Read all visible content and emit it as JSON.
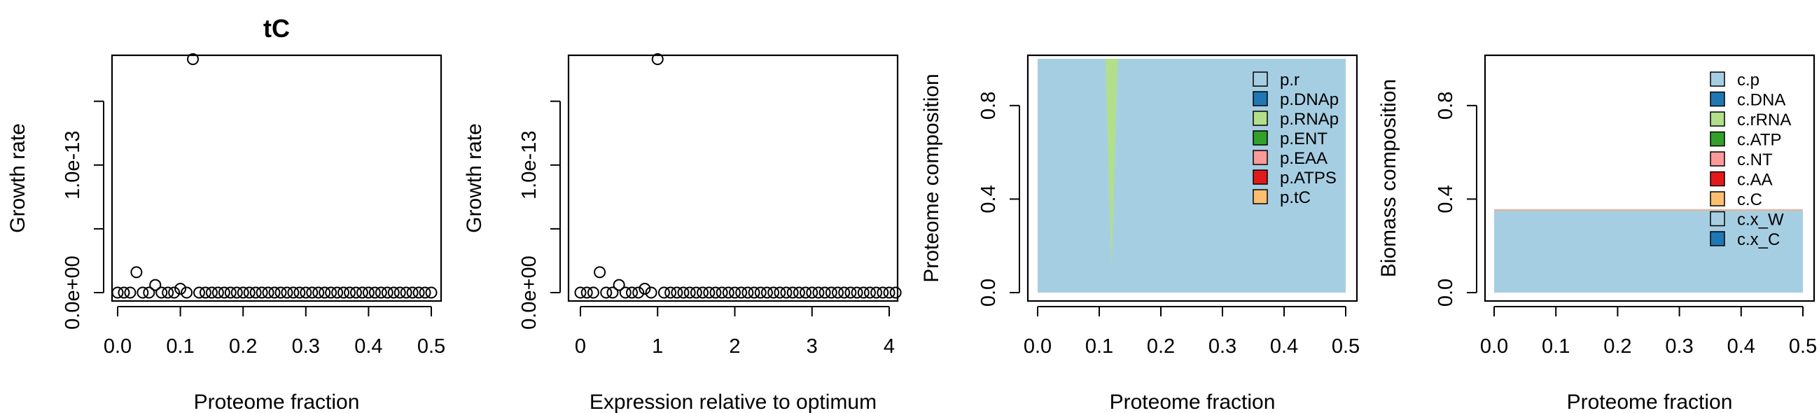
{
  "colors": {
    "axis": "#000000",
    "p.r": "#a6cee3",
    "p.DNAp": "#1f78b4",
    "p.RNAp": "#b2df8a",
    "p.ENT": "#33a02c",
    "p.EAA": "#fb9a99",
    "p.ATPS": "#e31a1c",
    "p.tC": "#fdbf6f",
    "c.p": "#a6cee3",
    "c.DNA": "#1f78b4",
    "c.rRNA": "#b2df8a",
    "c.ATP": "#33a02c",
    "c.NT": "#fb9a99",
    "c.AA": "#e31a1c",
    "c.C": "#fdbf6f",
    "c.x_W": "#a6cee3",
    "c.x_C": "#1f78b4"
  },
  "chart_data": [
    {
      "type": "scatter",
      "title": "tC",
      "xlabel": "Proteome fraction",
      "ylabel": "Growth rate",
      "xlim": [
        0,
        0.5
      ],
      "ylim": [
        0,
        1.9e-13
      ],
      "xticks": [
        "0.0",
        "0.1",
        "0.2",
        "0.3",
        "0.4",
        "0.5"
      ],
      "yticks": [
        "0.0e+00",
        "1.0e-13"
      ],
      "grid": false,
      "points": {
        "x": [
          0.0,
          0.01,
          0.02,
          0.03,
          0.04,
          0.05,
          0.06,
          0.07,
          0.08,
          0.09,
          0.1,
          0.11,
          0.12,
          0.13,
          0.14,
          0.15,
          0.16,
          0.17,
          0.18,
          0.19,
          0.2,
          0.21,
          0.22,
          0.23,
          0.24,
          0.25,
          0.26,
          0.27,
          0.28,
          0.29,
          0.3,
          0.31,
          0.32,
          0.33,
          0.34,
          0.35,
          0.36,
          0.37,
          0.38,
          0.39,
          0.4,
          0.41,
          0.42,
          0.43,
          0.44,
          0.45,
          0.46,
          0.47,
          0.48,
          0.49,
          0.5
        ],
        "y": [
          0,
          0,
          0,
          1.6e-14,
          0,
          0,
          6e-15,
          0,
          0,
          0,
          3e-15,
          0,
          1.83e-13,
          0,
          0,
          0,
          0,
          0,
          0,
          0,
          0,
          0,
          0,
          0,
          0,
          0,
          0,
          0,
          0,
          0,
          0,
          0,
          0,
          0,
          0,
          0,
          0,
          0,
          0,
          0,
          0,
          0,
          0,
          0,
          0,
          0,
          0,
          0,
          0,
          0,
          0
        ]
      }
    },
    {
      "type": "scatter",
      "title": "",
      "xlabel": "Expression relative to optimum",
      "ylabel": "Growth rate",
      "xlim": [
        0,
        4.17
      ],
      "ylim": [
        0,
        1.9e-13
      ],
      "xticks": [
        "0",
        "1",
        "2",
        "3",
        "4"
      ],
      "yticks": [
        "0.0e+00",
        "1.0e-13"
      ],
      "grid": false,
      "points": {
        "x": [
          0.0,
          0.0833,
          0.1667,
          0.25,
          0.3333,
          0.4167,
          0.5,
          0.5833,
          0.6667,
          0.75,
          0.8333,
          0.9167,
          1.0,
          1.0833,
          1.1667,
          1.25,
          1.3333,
          1.4167,
          1.5,
          1.5833,
          1.6667,
          1.75,
          1.8333,
          1.9167,
          2.0,
          2.0833,
          2.1667,
          2.25,
          2.3333,
          2.4167,
          2.5,
          2.5833,
          2.6667,
          2.75,
          2.8333,
          2.9167,
          3.0,
          3.0833,
          3.1667,
          3.25,
          3.3333,
          3.4167,
          3.5,
          3.5833,
          3.6667,
          3.75,
          3.8333,
          3.9167,
          4.0,
          4.0833,
          4.1667
        ],
        "y": [
          0,
          0,
          0,
          1.6e-14,
          0,
          0,
          6e-15,
          0,
          0,
          0,
          3e-15,
          0,
          1.83e-13,
          0,
          0,
          0,
          0,
          0,
          0,
          0,
          0,
          0,
          0,
          0,
          0,
          0,
          0,
          0,
          0,
          0,
          0,
          0,
          0,
          0,
          0,
          0,
          0,
          0,
          0,
          0,
          0,
          0,
          0,
          0,
          0,
          0,
          0,
          0,
          0,
          0,
          0
        ]
      }
    },
    {
      "type": "area",
      "title": "",
      "xlabel": "Proteome fraction",
      "ylabel": "Proteome composition",
      "xlim": [
        0,
        0.5
      ],
      "ylim": [
        0,
        1
      ],
      "xticks": [
        "0.0",
        "0.1",
        "0.2",
        "0.3",
        "0.4",
        "0.5"
      ],
      "yticks": [
        "0.0",
        "0.4",
        "0.8"
      ],
      "grid": false,
      "legend": "top-right",
      "legend_entries": [
        "p.r",
        "p.DNAp",
        "p.RNAp",
        "p.ENT",
        "p.EAA",
        "p.ATPS",
        "p.tC"
      ],
      "base": {
        "name": "p.r",
        "from": 0,
        "to": 1
      },
      "spikes": [
        {
          "name": "p.RNAp",
          "x": [
            0.11,
            0.12,
            0.13
          ],
          "upper": [
            1.0,
            1.0,
            1.0
          ],
          "lower": [
            1.0,
            0.1,
            1.0
          ]
        }
      ]
    },
    {
      "type": "area",
      "title": "",
      "xlabel": "Proteome fraction",
      "ylabel": "Biomass composition",
      "xlim": [
        0,
        0.5
      ],
      "ylim": [
        0,
        1
      ],
      "xticks": [
        "0.0",
        "0.1",
        "0.2",
        "0.3",
        "0.4",
        "0.5"
      ],
      "yticks": [
        "0.0",
        "0.4",
        "0.8"
      ],
      "grid": false,
      "legend": "top-right",
      "legend_entries": [
        "c.p",
        "c.DNA",
        "c.rRNA",
        "c.ATP",
        "c.NT",
        "c.AA",
        "c.C",
        "c.x_W",
        "c.x_C"
      ],
      "base": {
        "name": "c.p",
        "from": 0,
        "to": 0.35
      },
      "thin_layers": [
        {
          "name": "c.rRNA",
          "value": 0.004
        },
        {
          "name": "c.NT",
          "value": 0.002
        }
      ]
    }
  ]
}
